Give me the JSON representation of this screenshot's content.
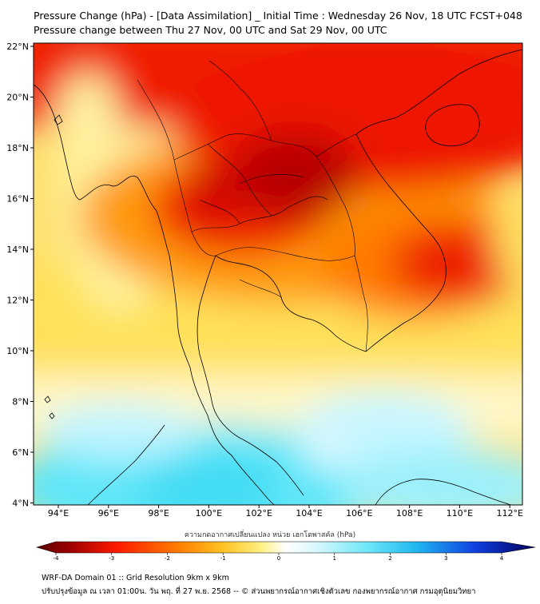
{
  "title_line1": "Pressure Change (hPa) - [Data Assimilation] _ Initial Time : Wednesday 26 Nov, 18 UTC FCST+048",
  "title_line2": "Pressure change between Thu 27 Nov, 00 UTC and Sat 29 Nov, 00 UTC",
  "lat_labels": [
    "22°N",
    "20°N",
    "18°N",
    "16°N",
    "14°N",
    "12°N",
    "10°N",
    "8°N",
    "6°N",
    "4°N"
  ],
  "lon_labels": [
    "94°E",
    "96°E",
    "98°E",
    "100°E",
    "102°E",
    "104°E",
    "106°E",
    "108°E",
    "110°E",
    "112°E"
  ],
  "colorbar": {
    "label": "ความกดอากาศเปลี่ยนแปลง หน่วย เฮกโตพาสคัล (hPa)",
    "ticks": [
      "-4",
      "-3",
      "-2",
      "-1",
      "0",
      "1",
      "2",
      "3",
      "4"
    ],
    "min": -4,
    "max": 4
  },
  "footer_line1": "WRF-DA Domain 01 :: Grid Resolution 9km x 9km",
  "footer_line2": "ปรับปรุงข้อมูล ณ เวลา 01:00น. วัน พฤ. ที่ 27 พ.ย. 2568 -- © ส่วนพยากรณ์อากาศเชิงตัวเลข กองพยากรณ์อากาศ กรมอุตุนิยมวิทยา",
  "colors": {
    "dark_red": "#b00000",
    "red": "#ee1c00",
    "orange": "#ffa400",
    "yellow": "#ffe76a",
    "pale_yellow": "#fff8b0",
    "white": "#ffffff",
    "pale_cyan": "#b8f2ff",
    "cyan": "#5ce6f8",
    "blue": "#1040d8",
    "navy": "#000080"
  }
}
